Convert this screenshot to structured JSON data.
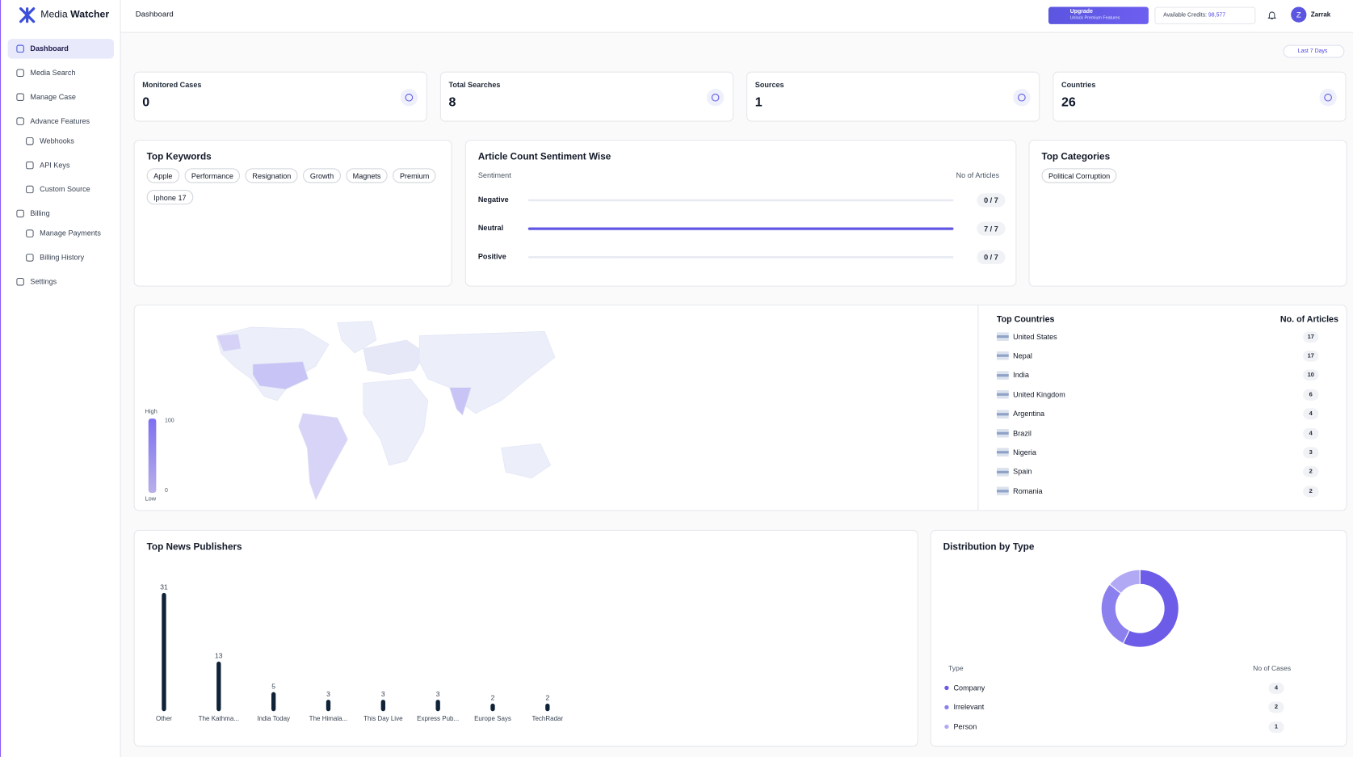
{
  "sidebar": {
    "brand": [
      "Media",
      "Watcher"
    ],
    "nav": [
      {
        "label": "Dashboard",
        "active": true,
        "sub": false
      },
      {
        "label": "Media Search",
        "active": false,
        "sub": false
      },
      {
        "label": "Manage Case",
        "active": false,
        "sub": false
      },
      {
        "label": "Advance Features",
        "active": false,
        "sub": false
      },
      {
        "label": "Webhooks",
        "active": false,
        "sub": true
      },
      {
        "label": "API Keys",
        "active": false,
        "sub": true
      },
      {
        "label": "Custom Source",
        "active": false,
        "sub": true
      },
      {
        "label": "Billing",
        "active": false,
        "sub": false
      },
      {
        "label": "Manage Payments",
        "active": false,
        "sub": true
      },
      {
        "label": "Billing History",
        "active": false,
        "sub": true
      },
      {
        "label": "Settings",
        "active": false,
        "sub": false
      }
    ]
  },
  "header": {
    "title": "Dashboard",
    "upgrade": {
      "title": "Upgrade",
      "subtitle": "Unlock Premium Features"
    },
    "credits": {
      "label": "Available Credits:",
      "value": "98,577"
    },
    "avatar": "Z",
    "user": "Zarrak"
  },
  "filter": "Last 7 Days",
  "stats": [
    {
      "label": "Monitored Cases",
      "value": 0
    },
    {
      "label": "Total Searches",
      "value": 8
    },
    {
      "label": "Sources",
      "value": 1
    },
    {
      "label": "Countries",
      "value": 26
    }
  ],
  "keywords": {
    "title": "Top Keywords",
    "items": [
      "Apple",
      "Performance",
      "Resignation",
      "Growth",
      "Magnets",
      "Premium",
      "Iphone 17"
    ]
  },
  "sentiment": {
    "title": "Article Count Sentiment Wise",
    "col_label": "Sentiment",
    "col_value": "No of Articles",
    "color": "#6257e3",
    "rows": [
      {
        "name": "Negative",
        "count": 0,
        "total": 7,
        "label": "0 / 7"
      },
      {
        "name": "Neutral",
        "count": 7,
        "total": 7,
        "label": "7 / 7"
      },
      {
        "name": "Positive",
        "count": 0,
        "total": 7,
        "label": "0 / 7"
      }
    ]
  },
  "categories": {
    "title": "Top Categories",
    "items": [
      "Political Corruption"
    ]
  },
  "map": {
    "legend": {
      "high": "High",
      "low": "Low",
      "max": 100,
      "min": 0
    }
  },
  "countries": {
    "title": "Top Countries",
    "col_value": "No. of Articles",
    "rows": [
      {
        "name": "United States",
        "value": 17
      },
      {
        "name": "Nepal",
        "value": 17
      },
      {
        "name": "India",
        "value": 10
      },
      {
        "name": "United Kingdom",
        "value": 6
      },
      {
        "name": "Argentina",
        "value": 4
      },
      {
        "name": "Brazil",
        "value": 4
      },
      {
        "name": "Nigeria",
        "value": 3
      },
      {
        "name": "Spain",
        "value": 2
      },
      {
        "name": "Romania",
        "value": 2
      }
    ]
  },
  "publishers": {
    "type": "bar",
    "title": "Top News Publishers",
    "color": "#0f2238",
    "categories": [
      "Other",
      "The Kathma...",
      "India Today",
      "The Himala...",
      "This Day Live",
      "Express Pub...",
      "Europe Says",
      "TechRadar"
    ],
    "values": [
      31,
      13,
      5,
      3,
      3,
      3,
      2,
      2
    ]
  },
  "distribution": {
    "type": "donut",
    "title": "Distribution by Type",
    "col_label": "Type",
    "col_value": "No of Cases",
    "series": [
      {
        "name": "Company",
        "color": "#6c5ce7",
        "value": 4
      },
      {
        "name": "Irrelevant",
        "color": "#8b80ee",
        "value": 2
      },
      {
        "name": "Person",
        "color": "#b2a9f5",
        "value": 1
      }
    ]
  }
}
